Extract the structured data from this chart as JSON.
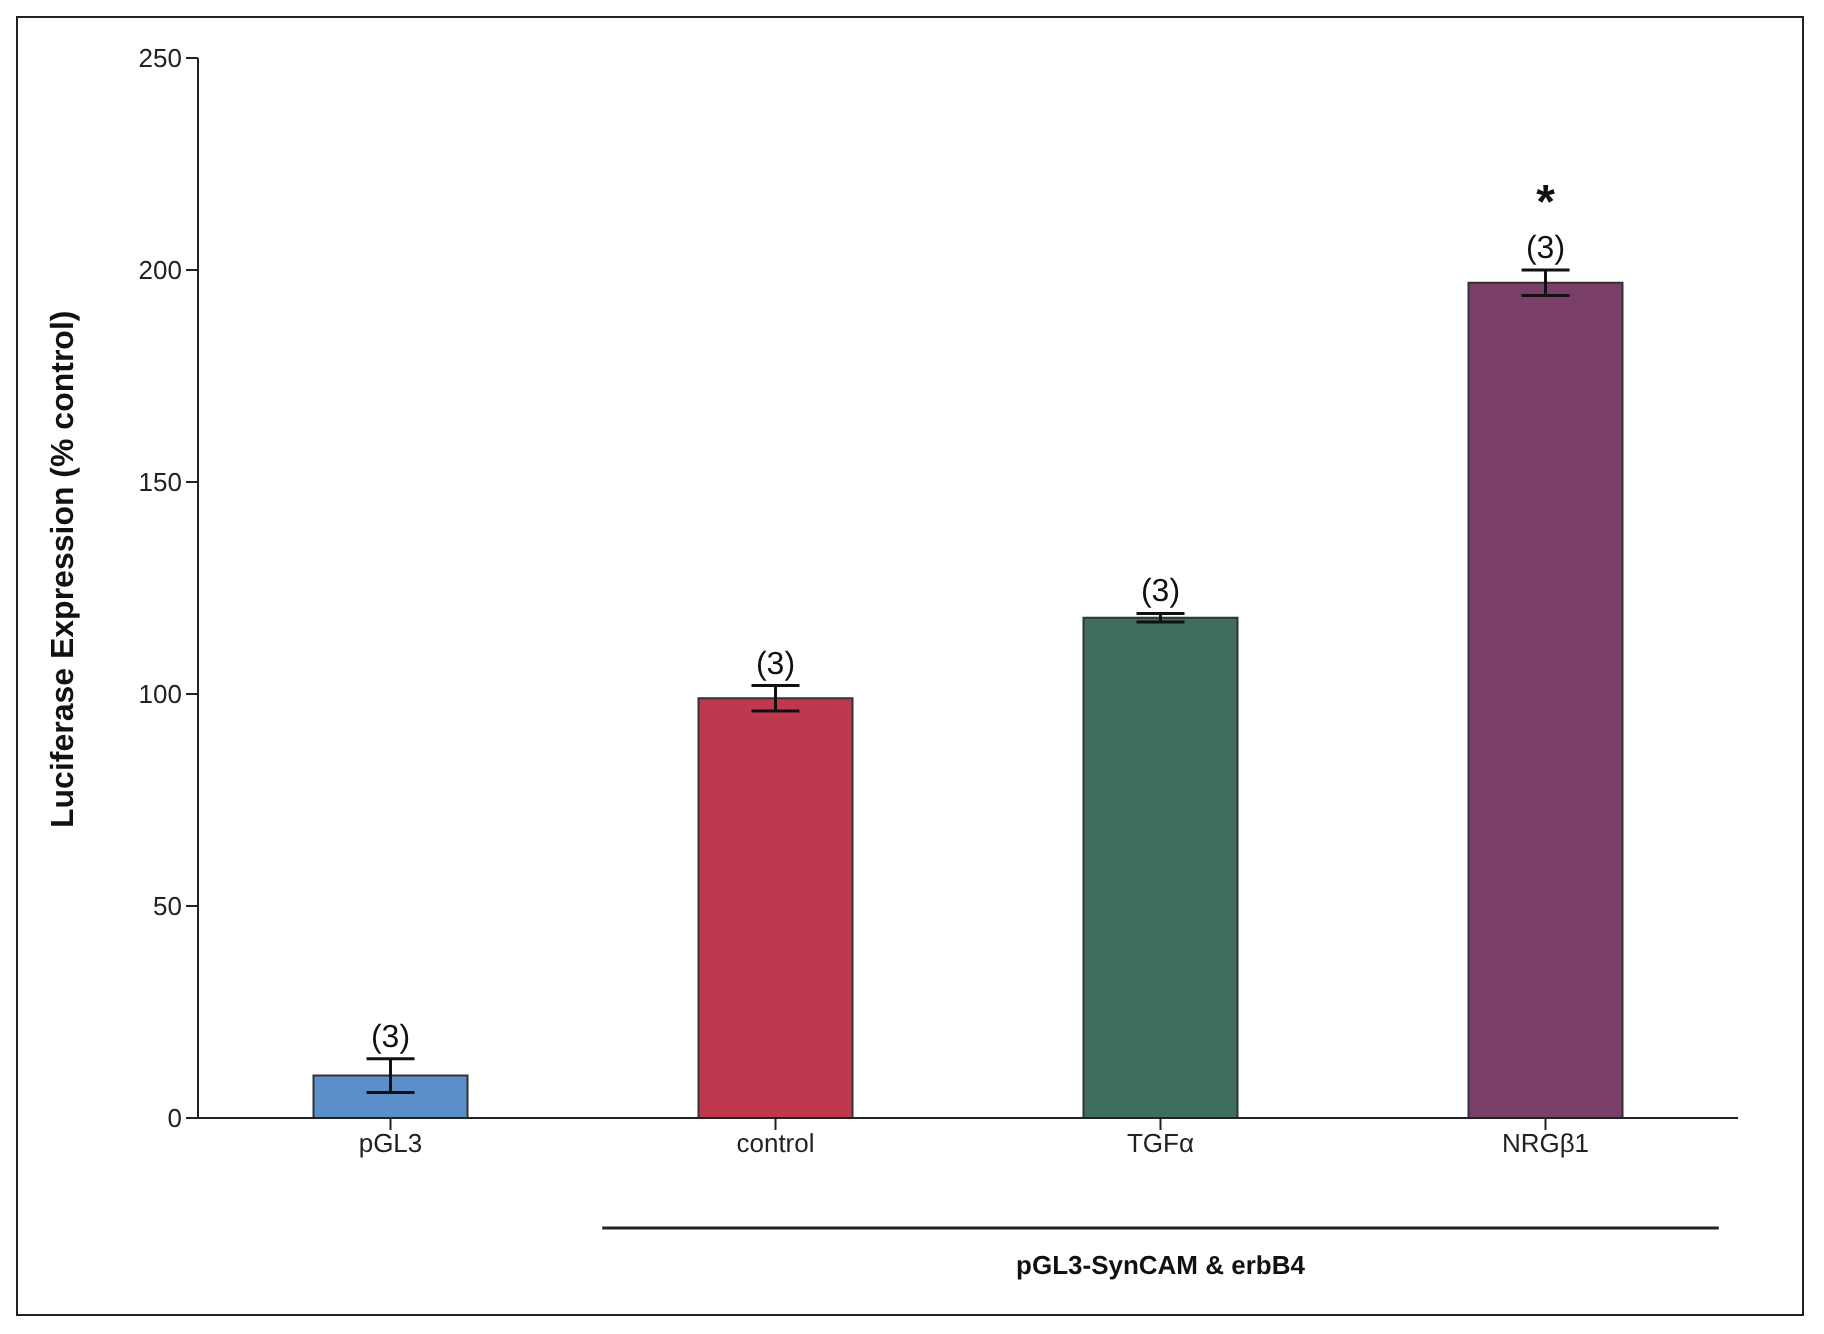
{
  "chart_data": {
    "type": "bar",
    "ylabel": "Luciferase Expression (% control)",
    "categories": [
      "pGL3",
      "control",
      "TGFα",
      "NRGβ1"
    ],
    "values": [
      10,
      99,
      118,
      197
    ],
    "errors": [
      4,
      3,
      1,
      3
    ],
    "colors": [
      "#5b8fc9",
      "#c0384e",
      "#3f6e5c",
      "#7a3f68"
    ],
    "ylim": [
      0,
      250
    ],
    "yticks": [
      0,
      50,
      100,
      150,
      200,
      250
    ],
    "grid": false,
    "annotations": [
      {
        "text": "(3)",
        "x": "pGL3",
        "y": 14
      },
      {
        "text": "(3)",
        "x": "control",
        "y": 102
      },
      {
        "text": "(3)",
        "x": "TGFα",
        "y": 119
      },
      {
        "text": "(3)",
        "x": "NRGβ1",
        "y": 200
      },
      {
        "text": "*",
        "x": "NRGβ1",
        "y": 200
      },
      "pGL3-SynCAM & erbB4"
    ]
  }
}
